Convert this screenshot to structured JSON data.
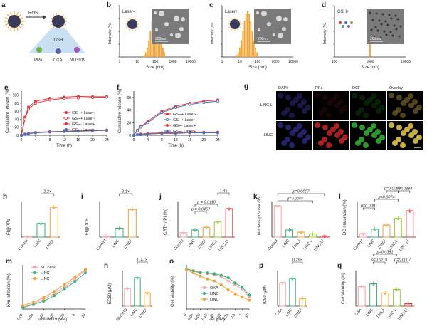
{
  "panels": {
    "a": {
      "letter": "a",
      "ros": "ROS",
      "gsh": "GSH",
      "labels": [
        "PPa",
        "OXA",
        "NLG919"
      ]
    },
    "b": {
      "letter": "b",
      "tag": "Laser-",
      "scale": "200nm",
      "xlabel": "Size (nm)",
      "ylabel": "Intensity (%)",
      "ticks": [
        "1",
        "10",
        "100",
        "1000",
        "10000"
      ]
    },
    "c": {
      "letter": "c",
      "tag": "Laser+",
      "scale": "200nm",
      "xlabel": "Size (nm)",
      "ylabel": "Intensity (%)",
      "ticks": [
        "1",
        "10",
        "100",
        "1000",
        "10000"
      ]
    },
    "d": {
      "letter": "d",
      "tag": "GSH+",
      "scale": "200nm",
      "xlabel": "Size (nm)",
      "ylabel": "Intensity (%)",
      "ticks": [
        "100",
        "1000",
        "10000"
      ]
    },
    "e": {
      "letter": "e",
      "xlabel": "Time (h)",
      "ylabel": "Cumulative release (%)",
      "legend": [
        "GSH+ Laser+",
        "GSH+ Laser-",
        "GSH- Laser+",
        "GSH- Laser+"
      ],
      "xticks": [
        "0",
        "4",
        "8",
        "12",
        "16",
        "20",
        "24"
      ],
      "yticks": [
        "0",
        "20",
        "40",
        "60",
        "80",
        "100"
      ]
    },
    "f": {
      "letter": "f",
      "xlabel": "Time (h)",
      "ylabel": "Cumulative release (%)",
      "legend": [
        "GSH+ Laser+",
        "GSH+ Laser-",
        "GSH- Laser+",
        "GSH- Laser+"
      ],
      "xticks": [
        "0",
        "4",
        "8",
        "12",
        "16",
        "20",
        "24"
      ],
      "yticks": [
        "0",
        "20",
        "40",
        "60"
      ]
    },
    "g": {
      "letter": "g",
      "cols": [
        "DAPI",
        "PPa",
        "DCF",
        "Overlay"
      ],
      "rows": [
        "LINC-L",
        "LINC"
      ]
    },
    "h": {
      "letter": "h",
      "ylabel": "FI@PPa",
      "fold": "2.2×",
      "cats": [
        "Control",
        "LINC",
        "LINC"
      ]
    },
    "i": {
      "letter": "i",
      "ylabel": "FI@DCF",
      "fold": "3.1×",
      "cats": [
        "Control",
        "LINC",
        "LINC"
      ]
    },
    "j": {
      "letter": "j",
      "ylabel": "CRT⁺ / PI (%)",
      "fold": "1.8×",
      "p1": "p = 0.0118",
      "p2": "p = 0.0467"
    },
    "k": {
      "letter": "k",
      "ylabel": "Nucleus positive (%)",
      "p1": "p=0.0007",
      "p2": "p=0.0007"
    },
    "l": {
      "letter": "l",
      "ylabel": "DC maturation (%)",
      "p1": "p=0.0003",
      "p2": "p=0.0384",
      "p3": "p=0.0074",
      "p4": "p=0.0001"
    },
    "m": {
      "letter": "m",
      "ylabel": "Kyn inhibition (%)",
      "xlabel": "NLG919 (μM)",
      "legend": [
        "NLG919",
        "LINC",
        "LINC"
      ],
      "xticks": [
        "0.03",
        "0.06",
        "0.12",
        "0.62",
        "1.25",
        "5",
        "10"
      ]
    },
    "n": {
      "letter": "n",
      "ylabel": "EC50 (μM)",
      "fold": "0.47×",
      "cats": [
        "NLG919",
        "LINC",
        "LINC"
      ]
    },
    "o": {
      "letter": "o",
      "ylabel": "Cell Viability (%)",
      "xlabel": "Pt (μM)",
      "legend": [
        "OXA",
        "LINC",
        "LINC"
      ],
      "xticks": [
        "0",
        "0.04",
        "0.08",
        "0.16",
        "0.31",
        "0.62",
        "1.25",
        "2.5",
        "5",
        "10"
      ]
    },
    "p": {
      "letter": "p",
      "ylabel": "IC50 (μM)",
      "fold": "0.29×",
      "cats": [
        "OXA",
        "LINC",
        "LINC"
      ]
    },
    "q": {
      "letter": "q",
      "ylabel": "Cell Viability (%)",
      "p1": "p=0.0381",
      "p2": "p=0.0119",
      "p3": "p=0.0007"
    }
  },
  "cat5": [
    "Control",
    "LINC",
    "LINC",
    "LINC-L",
    "LINC-L"
  ],
  "sup": {
    "L": "L"
  },
  "colors": {
    "orange": "#f0a43a",
    "red": "#e0393e",
    "green": "#39b07a",
    "blue": "#4a6fb5",
    "pink": "#f4a3a6",
    "ltgreen": "#6fcf9b",
    "black": "#222222"
  },
  "chart_data": [
    {
      "type": "bar",
      "panel": "b",
      "x_log": true,
      "xlim": [
        1,
        10000
      ],
      "ylim": [
        0,
        20
      ],
      "values_center": 120
    },
    {
      "type": "bar",
      "panel": "c",
      "x_log": true,
      "xlim": [
        1,
        10000
      ],
      "ylim": [
        0,
        20
      ],
      "values_center": 30
    },
    {
      "type": "bar",
      "panel": "d",
      "x_log": true,
      "xlim": [
        100,
        10000
      ],
      "ylim": [
        0,
        100
      ],
      "values_center": 900
    },
    {
      "type": "line",
      "panel": "e",
      "x": [
        0,
        1,
        2,
        4,
        8,
        12,
        16,
        20,
        24
      ],
      "series": [
        {
          "name": "GSH+ Laser+",
          "values": [
            0,
            45,
            70,
            85,
            92,
            95,
            97,
            96,
            96
          ]
        },
        {
          "name": "GSH+ Laser-",
          "values": [
            0,
            40,
            65,
            80,
            88,
            92,
            93,
            94,
            95
          ]
        },
        {
          "name": "GSH- Laser+",
          "values": [
            0,
            3,
            5,
            7,
            9,
            10,
            11,
            12,
            13
          ]
        },
        {
          "name": "GSH- Laser+",
          "values": [
            0,
            2,
            4,
            6,
            8,
            9,
            10,
            11,
            12
          ]
        }
      ]
    },
    {
      "type": "line",
      "panel": "f",
      "x": [
        0,
        1,
        2,
        4,
        8,
        12,
        16,
        20,
        24
      ],
      "series": [
        {
          "name": "GSH+ Laser+",
          "values": [
            0,
            8,
            14,
            22,
            38,
            46,
            51,
            54,
            56
          ]
        },
        {
          "name": "GSH+ Laser-",
          "values": [
            0,
            7,
            13,
            20,
            36,
            44,
            49,
            52,
            54
          ]
        },
        {
          "name": "GSH- Laser+",
          "values": [
            0,
            1,
            2,
            3,
            4,
            4,
            5,
            5,
            5
          ]
        },
        {
          "name": "GSH- Laser+",
          "values": [
            0,
            1,
            1,
            2,
            3,
            3,
            4,
            4,
            4
          ]
        }
      ]
    },
    {
      "type": "bar",
      "panel": "h",
      "categories": [
        "Control",
        "LINC",
        "LINC"
      ],
      "values": [
        5,
        385,
        840
      ]
    },
    {
      "type": "bar",
      "panel": "i",
      "categories": [
        "Control",
        "LINC",
        "LINC"
      ],
      "values": [
        2,
        20,
        62
      ]
    },
    {
      "type": "bar",
      "panel": "j",
      "categories": [
        "Control",
        "LINC",
        "LINC",
        "LINC-L",
        "LINC-L"
      ],
      "values": [
        5,
        8,
        11,
        17,
        32
      ]
    },
    {
      "type": "bar",
      "panel": "k",
      "categories": [
        "Control",
        "LINC",
        "LINC",
        "LINC-L",
        "LINC-L"
      ],
      "values": [
        88,
        20,
        14,
        9,
        3
      ]
    },
    {
      "type": "bar",
      "panel": "l",
      "categories": [
        "Control",
        "LINC",
        "LINC",
        "LINC-L",
        "LINC-L"
      ],
      "values": [
        8,
        18,
        27,
        42,
        59
      ]
    },
    {
      "type": "line",
      "panel": "m",
      "x": [
        "0.03",
        "0.06",
        "0.12",
        "0.62",
        "1.25",
        "5",
        "10"
      ],
      "series": [
        {
          "name": "NLG919",
          "values": [
            5,
            12,
            22,
            35,
            50,
            68,
            88
          ]
        },
        {
          "name": "LINC",
          "values": [
            3,
            10,
            18,
            30,
            46,
            62,
            82
          ]
        },
        {
          "name": "LINC",
          "values": [
            8,
            15,
            26,
            40,
            56,
            72,
            90
          ]
        }
      ]
    },
    {
      "type": "bar",
      "panel": "n",
      "categories": [
        "NLG919",
        "LINC",
        "LINC"
      ],
      "values": [
        1.0,
        1.6,
        0.75
      ]
    },
    {
      "type": "line",
      "panel": "o",
      "x": [
        "0",
        "0.04",
        "0.08",
        "0.16",
        "0.31",
        "0.62",
        "1.25",
        "2.5",
        "5",
        "10"
      ],
      "series": [
        {
          "name": "OXA",
          "values": [
            100,
            96,
            92,
            88,
            86,
            80,
            70,
            60,
            50,
            30
          ]
        },
        {
          "name": "LINC",
          "values": [
            100,
            95,
            90,
            90,
            88,
            84,
            78,
            65,
            55,
            35
          ]
        },
        {
          "name": "LINC",
          "values": [
            98,
            90,
            82,
            75,
            70,
            60,
            48,
            38,
            30,
            22
          ]
        }
      ]
    },
    {
      "type": "bar",
      "panel": "p",
      "categories": [
        "OXA",
        "LINC",
        "LINC"
      ],
      "values": [
        3.3,
        3.9,
        1.1
      ]
    },
    {
      "type": "bar",
      "panel": "q",
      "categories": [
        "OXA",
        "LINC",
        "LINC",
        "LINC-L",
        "LINC-L"
      ],
      "values": [
        55,
        63,
        37,
        47,
        7
      ]
    }
  ]
}
